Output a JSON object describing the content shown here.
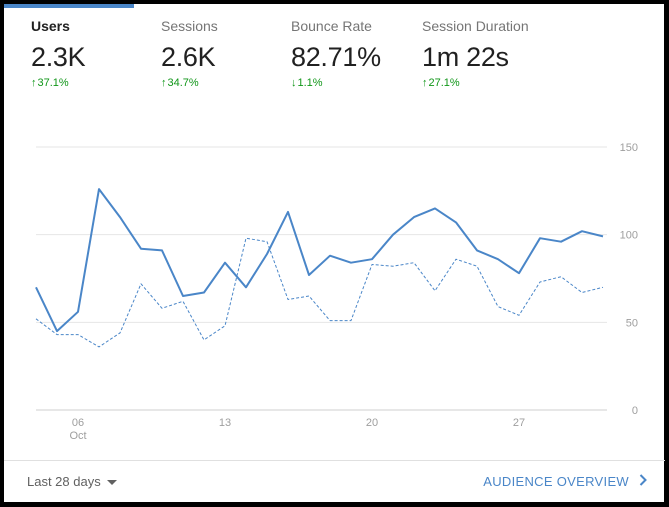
{
  "metrics": [
    {
      "label": "Users",
      "value": "2.3K",
      "delta": "37.1%",
      "direction": "up"
    },
    {
      "label": "Sessions",
      "value": "2.6K",
      "delta": "34.7%",
      "direction": "up"
    },
    {
      "label": "Bounce Rate",
      "value": "82.71%",
      "delta": "1.1%",
      "direction": "down"
    },
    {
      "label": "Session Duration",
      "value": "1m 22s",
      "delta": "27.1%",
      "direction": "up"
    }
  ],
  "footer": {
    "date_range": "Last 28 days",
    "overview_link": "AUDIENCE OVERVIEW"
  },
  "colors": {
    "accent": "#4a86c8",
    "positive": "#109618"
  },
  "chart_data": {
    "type": "line",
    "x_labels": [
      {
        "index": 2,
        "label": "06",
        "sublabel": "Oct"
      },
      {
        "index": 9,
        "label": "13"
      },
      {
        "index": 16,
        "label": "20"
      },
      {
        "index": 23,
        "label": "27"
      }
    ],
    "y_ticks": [
      0,
      50,
      100,
      150
    ],
    "ylim": [
      0,
      150
    ],
    "series": [
      {
        "name": "Users (current)",
        "style": "solid",
        "values": [
          70,
          45,
          56,
          126,
          110,
          92,
          91,
          65,
          67,
          84,
          70,
          89,
          113,
          77,
          88,
          84,
          86,
          100,
          110,
          115,
          107,
          91,
          86,
          78,
          98,
          96,
          102,
          99
        ]
      },
      {
        "name": "Users (previous)",
        "style": "dashed",
        "values": [
          52,
          43,
          43,
          36,
          44,
          72,
          58,
          62,
          40,
          48,
          98,
          96,
          63,
          65,
          51,
          51,
          83,
          82,
          84,
          68,
          86,
          82,
          59,
          54,
          73,
          76,
          67,
          70
        ]
      }
    ]
  }
}
